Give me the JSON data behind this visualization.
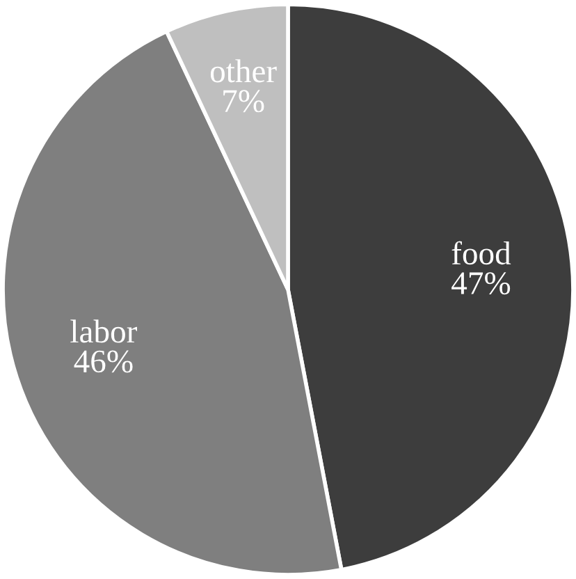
{
  "chart_data": {
    "type": "pie",
    "categories": [
      "food",
      "labor",
      "other"
    ],
    "values": [
      47,
      46,
      7
    ],
    "value_labels": [
      "47%",
      "46%",
      "7%"
    ],
    "colors": [
      "#3d3d3d",
      "#7f7f7f",
      "#bfbfbf"
    ],
    "legend": false
  }
}
